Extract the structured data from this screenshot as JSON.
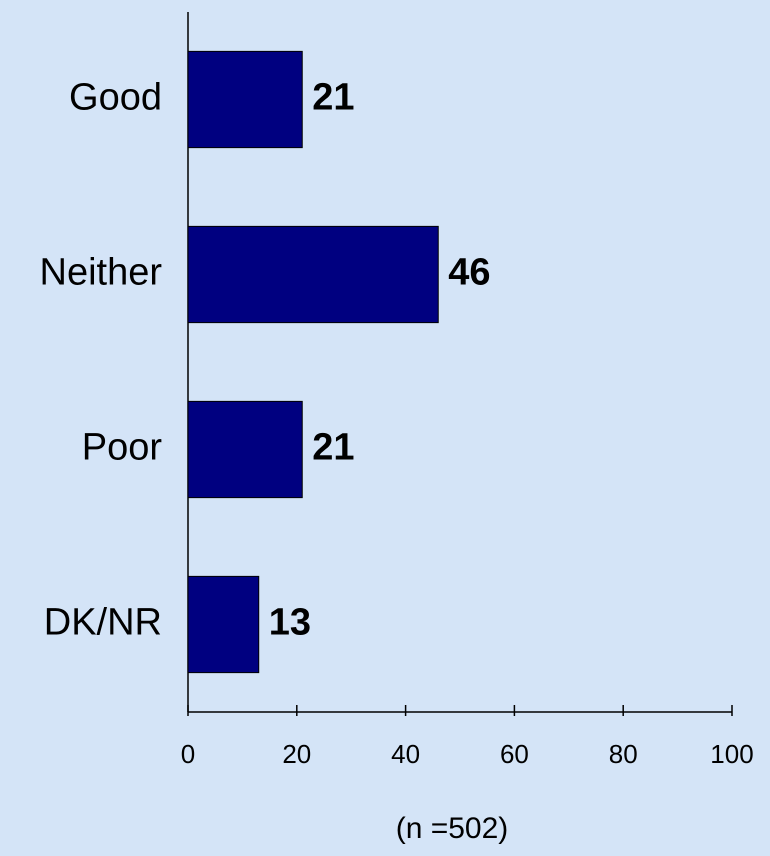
{
  "chart_data": {
    "type": "bar",
    "orientation": "horizontal",
    "categories": [
      "Good",
      "Neither",
      "Poor",
      "DK/NR"
    ],
    "values": [
      21,
      46,
      21,
      13
    ],
    "color": "#000080",
    "xlim": [
      0,
      100
    ],
    "xticks": [
      0,
      20,
      40,
      60,
      80,
      100
    ],
    "xlabel": "(n =502)"
  }
}
